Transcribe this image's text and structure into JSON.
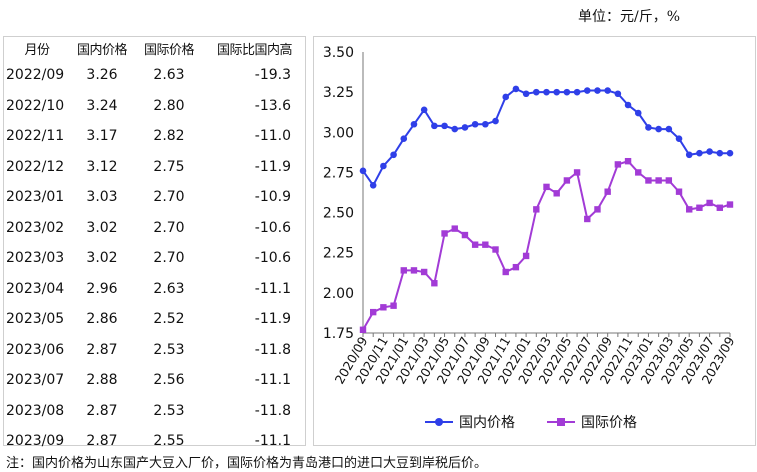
{
  "unit_label": "单位：元/斤，%",
  "table": {
    "headers": [
      "月份",
      "国内价格",
      "国际价格",
      "国际比国内高"
    ],
    "rows": [
      [
        "2022/09",
        "3.26",
        "2.63",
        "-19.3"
      ],
      [
        "2022/10",
        "3.24",
        "2.80",
        "-13.6"
      ],
      [
        "2022/11",
        "3.17",
        "2.82",
        "-11.0"
      ],
      [
        "2022/12",
        "3.12",
        "2.75",
        "-11.9"
      ],
      [
        "2023/01",
        "3.03",
        "2.70",
        "-10.9"
      ],
      [
        "2023/02",
        "3.02",
        "2.70",
        "-10.6"
      ],
      [
        "2023/03",
        "3.02",
        "2.70",
        "-10.6"
      ],
      [
        "2023/04",
        "2.96",
        "2.63",
        "-11.1"
      ],
      [
        "2023/05",
        "2.86",
        "2.52",
        "-11.9"
      ],
      [
        "2023/06",
        "2.87",
        "2.53",
        "-11.8"
      ],
      [
        "2023/07",
        "2.88",
        "2.56",
        "-11.1"
      ],
      [
        "2023/08",
        "2.87",
        "2.53",
        "-11.8"
      ],
      [
        "2023/09",
        "2.87",
        "2.55",
        "-11.1"
      ]
    ]
  },
  "chart_data": {
    "type": "line",
    "x": [
      "2020/09",
      "2020/10",
      "2020/11",
      "2020/12",
      "2021/01",
      "2021/02",
      "2021/03",
      "2021/04",
      "2021/05",
      "2021/06",
      "2021/07",
      "2021/08",
      "2021/09",
      "2021/10",
      "2021/11",
      "2021/12",
      "2022/01",
      "2022/02",
      "2022/03",
      "2022/04",
      "2022/05",
      "2022/06",
      "2022/07",
      "2022/08",
      "2022/09",
      "2022/10",
      "2022/11",
      "2022/12",
      "2023/01",
      "2023/02",
      "2023/03",
      "2023/04",
      "2023/05",
      "2023/06",
      "2023/07",
      "2023/08",
      "2023/09"
    ],
    "tick_labels": [
      "2020/09",
      "2020/11",
      "2021/01",
      "2021/03",
      "2021/05",
      "2021/07",
      "2021/09",
      "2021/11",
      "2022/01",
      "2022/03",
      "2022/05",
      "2022/07",
      "2022/09",
      "2022/11",
      "2023/01",
      "2023/03",
      "2023/05",
      "2023/07",
      "2023/09"
    ],
    "series": [
      {
        "name": "国内价格",
        "color": "#2f3fe8",
        "marker": "circle",
        "values": [
          2.76,
          2.67,
          2.79,
          2.86,
          2.96,
          3.05,
          3.14,
          3.04,
          3.04,
          3.02,
          3.03,
          3.05,
          3.05,
          3.07,
          3.22,
          3.27,
          3.24,
          3.25,
          3.25,
          3.25,
          3.25,
          3.25,
          3.26,
          3.26,
          3.26,
          3.24,
          3.17,
          3.12,
          3.03,
          3.02,
          3.02,
          2.96,
          2.86,
          2.87,
          2.88,
          2.87,
          2.87
        ]
      },
      {
        "name": "国际价格",
        "color": "#a23bd6",
        "marker": "square",
        "values": [
          1.77,
          1.88,
          1.91,
          1.92,
          2.14,
          2.14,
          2.13,
          2.06,
          2.37,
          2.4,
          2.36,
          2.3,
          2.3,
          2.27,
          2.13,
          2.16,
          2.23,
          2.52,
          2.66,
          2.62,
          2.7,
          2.75,
          2.46,
          2.52,
          2.63,
          2.8,
          2.82,
          2.75,
          2.7,
          2.7,
          2.7,
          2.63,
          2.52,
          2.53,
          2.56,
          2.53,
          2.55
        ]
      }
    ],
    "ylim": [
      1.75,
      3.5
    ],
    "yticks": [
      "1.75",
      "2.00",
      "2.25",
      "2.50",
      "2.75",
      "3.00",
      "3.25",
      "3.50"
    ],
    "grid": false,
    "legend_position": "bottom"
  },
  "note": "注：国内价格为山东国产大豆入厂价，国际价格为青岛港口的进口大豆到岸税后价。"
}
